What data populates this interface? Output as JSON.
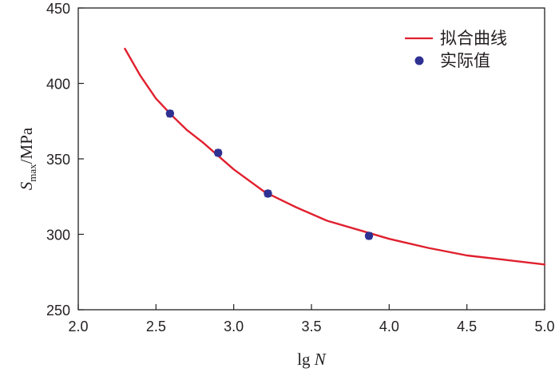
{
  "chart_data": {
    "type": "line",
    "xlabel": {
      "prefix": "lg ",
      "var": "N"
    },
    "ylabel": {
      "var": "S",
      "sub": "max",
      "unit": "/MPa"
    },
    "xlim": [
      2.0,
      5.0
    ],
    "ylim": [
      250,
      450
    ],
    "xticks": [
      "2.0",
      "2.5",
      "3.0",
      "3.5",
      "4.0",
      "4.5",
      "5.0"
    ],
    "yticks": [
      "250",
      "300",
      "350",
      "400",
      "450"
    ],
    "grid": false,
    "legend_position": "top-right",
    "series": [
      {
        "name": "拟合曲线",
        "kind": "line",
        "color": "#e0202e",
        "x": [
          2.3,
          2.4,
          2.5,
          2.6,
          2.7,
          2.8,
          2.9,
          3.0,
          3.2,
          3.4,
          3.6,
          3.8,
          4.0,
          4.25,
          4.5,
          4.75,
          5.0
        ],
        "y": [
          423,
          405,
          390,
          379,
          369,
          361,
          352,
          343,
          328,
          318,
          309,
          303,
          297,
          291,
          286,
          283,
          280
        ]
      },
      {
        "name": "实际值",
        "kind": "scatter",
        "color": "#2e3192",
        "x": [
          2.59,
          2.9,
          3.22,
          3.87
        ],
        "y": [
          380,
          354,
          327,
          299
        ],
        "err": [
          2,
          2,
          2,
          2
        ]
      }
    ]
  }
}
